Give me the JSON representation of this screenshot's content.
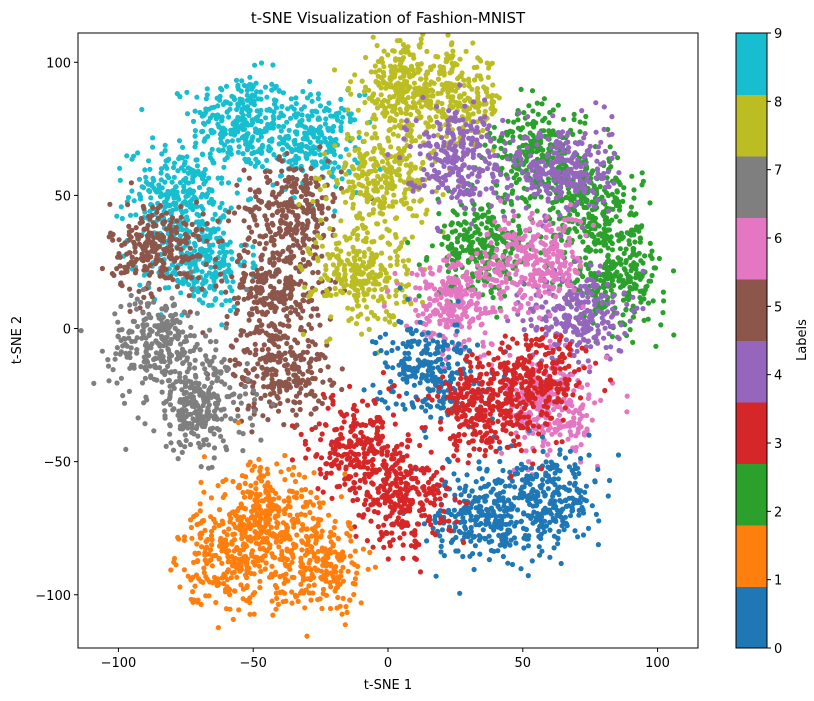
{
  "chart_data": {
    "type": "scatter",
    "title": "t-SNE Visualization of Fashion-MNIST",
    "xlabel": "t-SNE 1",
    "ylabel": "t-SNE 2",
    "xlim": [
      -115,
      115
    ],
    "ylim": [
      -120,
      111
    ],
    "x_ticks": [
      -100,
      -50,
      0,
      50,
      100
    ],
    "y_ticks": [
      -100,
      -50,
      0,
      50,
      100
    ],
    "x_tick_labels": [
      "−100",
      "−50",
      "0",
      "50",
      "100"
    ],
    "y_tick_labels": [
      "−100",
      "−50",
      "0",
      "50",
      "100"
    ],
    "grid": false,
    "colorbar": {
      "label": "Labels",
      "min": 0,
      "max": 9,
      "ticks": [
        0,
        1,
        2,
        3,
        4,
        5,
        6,
        7,
        8,
        9
      ],
      "tick_labels": [
        "0",
        "1",
        "2",
        "3",
        "4",
        "5",
        "6",
        "7",
        "8",
        "9"
      ],
      "colors": [
        "#1f77b4",
        "#ff7f0e",
        "#2ca02c",
        "#d62728",
        "#9467bd",
        "#8c564b",
        "#e377c2",
        "#7f7f7f",
        "#bcbd22",
        "#17becf"
      ]
    },
    "clusters": [
      {
        "label": 9,
        "x": -55,
        "y": 78
      },
      {
        "label": 9,
        "x": -28,
        "y": 70
      },
      {
        "label": 9,
        "x": -78,
        "y": 50
      },
      {
        "label": 9,
        "x": -70,
        "y": 25
      },
      {
        "label": 5,
        "x": -35,
        "y": 45
      },
      {
        "label": 5,
        "x": -42,
        "y": 15
      },
      {
        "label": 5,
        "x": -40,
        "y": -15
      },
      {
        "label": 5,
        "x": -85,
        "y": 30
      },
      {
        "label": 7,
        "x": -85,
        "y": -5
      },
      {
        "label": 7,
        "x": -70,
        "y": -30
      },
      {
        "label": 8,
        "x": 5,
        "y": 90
      },
      {
        "label": 8,
        "x": 25,
        "y": 85
      },
      {
        "label": 8,
        "x": -3,
        "y": 55
      },
      {
        "label": 8,
        "x": -10,
        "y": 20
      },
      {
        "label": 2,
        "x": 55,
        "y": 65
      },
      {
        "label": 2,
        "x": 35,
        "y": 30
      },
      {
        "label": 2,
        "x": 85,
        "y": 20
      },
      {
        "label": 2,
        "x": 75,
        "y": 45
      },
      {
        "label": 4,
        "x": 65,
        "y": 60
      },
      {
        "label": 4,
        "x": 70,
        "y": 5
      },
      {
        "label": 4,
        "x": 25,
        "y": 65
      },
      {
        "label": 6,
        "x": 25,
        "y": 10
      },
      {
        "label": 6,
        "x": 55,
        "y": 25
      },
      {
        "label": 6,
        "x": 60,
        "y": -30
      },
      {
        "label": 0,
        "x": 15,
        "y": -15
      },
      {
        "label": 0,
        "x": 60,
        "y": -65
      },
      {
        "label": 0,
        "x": 35,
        "y": -70
      },
      {
        "label": 3,
        "x": -10,
        "y": -45
      },
      {
        "label": 3,
        "x": 35,
        "y": -30
      },
      {
        "label": 3,
        "x": 55,
        "y": -20
      },
      {
        "label": 3,
        "x": 5,
        "y": -65
      },
      {
        "label": 1,
        "x": -45,
        "y": -70
      },
      {
        "label": 1,
        "x": -25,
        "y": -90
      },
      {
        "label": 1,
        "x": -60,
        "y": -85
      }
    ]
  }
}
